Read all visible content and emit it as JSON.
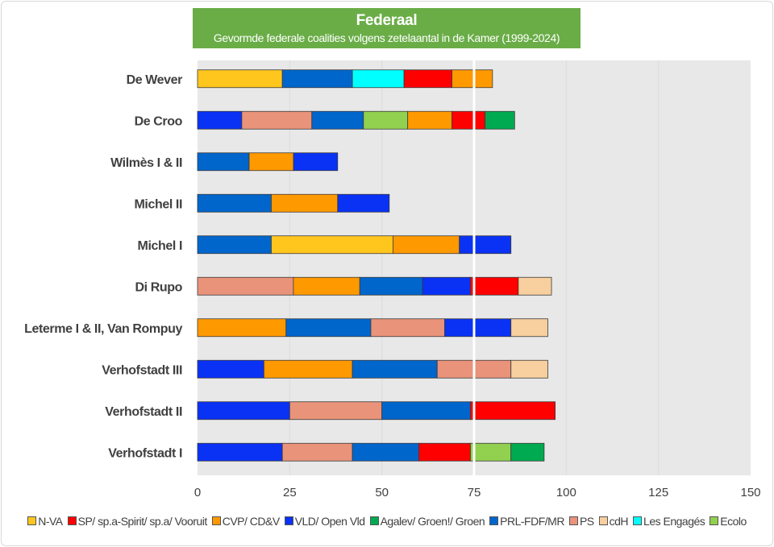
{
  "chart_data": {
    "type": "bar",
    "orientation": "horizontal",
    "stacked": true,
    "title": "Federaal",
    "subtitle": "Gevormde federale coalities volgens zetelaantal in de Kamer (1999-2024)",
    "xlim": [
      0,
      150
    ],
    "xticks": [
      "0",
      "25",
      "50",
      "75",
      "100",
      "125",
      "150"
    ],
    "majority_line": 75,
    "legend_position": "bottom",
    "parties": [
      {
        "name": "N-VA",
        "color": "#FFC61E"
      },
      {
        "name": "SP/ sp.a-Spirit/ sp.a/ Vooruit",
        "color": "#FF0000"
      },
      {
        "name": "CVP/ CD&V",
        "color": "#FF9900"
      },
      {
        "name": "VLD/ Open Vld",
        "color": "#0A32F5"
      },
      {
        "name": "Agalev/ Groen!/ Groen",
        "color": "#00AA50"
      },
      {
        "name": "PRL-FDF/MR",
        "color": "#0066CC"
      },
      {
        "name": "PS",
        "color": "#E9937A"
      },
      {
        "name": "cdH",
        "color": "#F8CF9E"
      },
      {
        "name": "Les Engagés",
        "color": "#00FFFF"
      },
      {
        "name": "Ecolo",
        "color": "#92D050"
      }
    ],
    "categories": [
      {
        "name": "De Wever",
        "segments": [
          [
            "N-VA",
            23
          ],
          [
            "PRL-FDF/MR",
            19
          ],
          [
            "Les Engagés",
            14
          ],
          [
            "SP/ sp.a-Spirit/ sp.a/ Vooruit",
            13
          ],
          [
            "CVP/ CD&V",
            11
          ]
        ]
      },
      {
        "name": "De Croo",
        "segments": [
          [
            "VLD/ Open Vld",
            12
          ],
          [
            "PS",
            19
          ],
          [
            "PRL-FDF/MR",
            14
          ],
          [
            "Ecolo",
            12
          ],
          [
            "CVP/ CD&V",
            12
          ],
          [
            "SP/ sp.a-Spirit/ sp.a/ Vooruit",
            9
          ],
          [
            "Agalev/ Groen!/ Groen",
            8
          ]
        ]
      },
      {
        "name": "Wilmès I & II",
        "segments": [
          [
            "PRL-FDF/MR",
            14
          ],
          [
            "CVP/ CD&V",
            12
          ],
          [
            "VLD/ Open Vld",
            12
          ]
        ]
      },
      {
        "name": "Michel II",
        "segments": [
          [
            "PRL-FDF/MR",
            20
          ],
          [
            "CVP/ CD&V",
            18
          ],
          [
            "VLD/ Open Vld",
            14
          ]
        ]
      },
      {
        "name": "Michel I",
        "segments": [
          [
            "PRL-FDF/MR",
            20
          ],
          [
            "N-VA",
            33
          ],
          [
            "CVP/ CD&V",
            18
          ],
          [
            "VLD/ Open Vld",
            14
          ]
        ]
      },
      {
        "name": "Di Rupo",
        "segments": [
          [
            "PS",
            26
          ],
          [
            "CVP/ CD&V",
            18
          ],
          [
            "PRL-FDF/MR",
            17
          ],
          [
            "VLD/ Open Vld",
            13
          ],
          [
            "SP/ sp.a-Spirit/ sp.a/ Vooruit",
            13
          ],
          [
            "cdH",
            9
          ]
        ]
      },
      {
        "name": "Leterme I & II, Van Rompuy",
        "segments": [
          [
            "CVP/ CD&V",
            24
          ],
          [
            "PRL-FDF/MR",
            23
          ],
          [
            "PS",
            20
          ],
          [
            "VLD/ Open Vld",
            18
          ],
          [
            "cdH",
            10
          ]
        ]
      },
      {
        "name": "Verhofstadt III",
        "segments": [
          [
            "VLD/ Open Vld",
            18
          ],
          [
            "CVP/ CD&V",
            24
          ],
          [
            "PRL-FDF/MR",
            23
          ],
          [
            "PS",
            20
          ],
          [
            "cdH",
            10
          ]
        ]
      },
      {
        "name": "Verhofstadt II",
        "segments": [
          [
            "VLD/ Open Vld",
            25
          ],
          [
            "PS",
            25
          ],
          [
            "PRL-FDF/MR",
            24
          ],
          [
            "SP/ sp.a-Spirit/ sp.a/ Vooruit",
            23
          ]
        ]
      },
      {
        "name": "Verhofstadt I",
        "segments": [
          [
            "VLD/ Open Vld",
            23
          ],
          [
            "PS",
            19
          ],
          [
            "PRL-FDF/MR",
            18
          ],
          [
            "SP/ sp.a-Spirit/ sp.a/ Vooruit",
            14
          ],
          [
            "Ecolo",
            11
          ],
          [
            "Agalev/ Groen!/ Groen",
            9
          ]
        ]
      }
    ]
  }
}
